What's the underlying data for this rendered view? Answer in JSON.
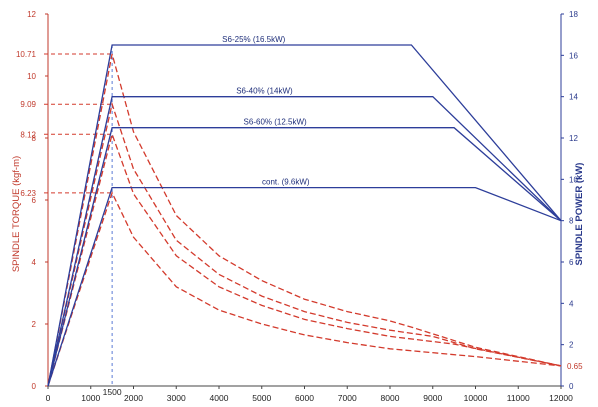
{
  "chart_data": {
    "type": "line",
    "title": "",
    "xlabel": "",
    "xlim": [
      0,
      12000
    ],
    "x_ticks": [
      0,
      1000,
      2000,
      3000,
      4000,
      5000,
      6000,
      7000,
      8000,
      9000,
      10000,
      11000,
      12000
    ],
    "x_ticks_extra": [
      1500
    ],
    "y_left": {
      "label": "SPINDLE TORQUE (kgf-m)",
      "lim": [
        0,
        12
      ],
      "ticks": [
        0,
        2,
        4,
        6,
        8,
        10,
        12
      ],
      "annotated_ticks": [
        {
          "value": 10.71,
          "label": "10.71"
        },
        {
          "value": 9.09,
          "label": "9.09"
        },
        {
          "value": 8.12,
          "label": "8.12"
        },
        {
          "value": 6.23,
          "label": "6.23"
        },
        {
          "value": 0.65,
          "label": "0.65"
        }
      ]
    },
    "y_right": {
      "label": "SPINDLE  POWER (kW)",
      "lim": [
        0,
        18
      ],
      "ticks": [
        0,
        2,
        4,
        6,
        8,
        10,
        12,
        14,
        16,
        18
      ]
    },
    "power_series": [
      {
        "label": "S6-25% (16.5kW)",
        "points": [
          [
            0,
            0
          ],
          [
            1500,
            16.5
          ],
          [
            8500,
            16.5
          ],
          [
            12000,
            8
          ]
        ]
      },
      {
        "label": "S6-40% (14kW)",
        "points": [
          [
            0,
            0
          ],
          [
            1500,
            14
          ],
          [
            9000,
            14
          ],
          [
            12000,
            8
          ]
        ]
      },
      {
        "label": "S6-60% (12.5kW)",
        "points": [
          [
            0,
            0
          ],
          [
            1500,
            12.5
          ],
          [
            9500,
            12.5
          ],
          [
            12000,
            8
          ]
        ]
      },
      {
        "label": "cont. (9.6kW)",
        "points": [
          [
            0,
            0
          ],
          [
            1500,
            9.6
          ],
          [
            10000,
            9.6
          ],
          [
            12000,
            8
          ]
        ]
      }
    ],
    "torque_series": [
      {
        "points": [
          [
            0,
            0
          ],
          [
            1500,
            10.71
          ],
          [
            2000,
            8.2
          ],
          [
            3000,
            5.5
          ],
          [
            4000,
            4.2
          ],
          [
            5000,
            3.4
          ],
          [
            6000,
            2.8
          ],
          [
            7000,
            2.4
          ],
          [
            8000,
            2.1
          ],
          [
            8500,
            1.9
          ],
          [
            10000,
            1.25
          ],
          [
            12000,
            0.65
          ]
        ]
      },
      {
        "points": [
          [
            0,
            0
          ],
          [
            1500,
            9.09
          ],
          [
            2000,
            7.0
          ],
          [
            3000,
            4.7
          ],
          [
            4000,
            3.6
          ],
          [
            5000,
            2.9
          ],
          [
            6000,
            2.4
          ],
          [
            7000,
            2.05
          ],
          [
            8000,
            1.8
          ],
          [
            9000,
            1.6
          ],
          [
            10000,
            1.2
          ],
          [
            12000,
            0.65
          ]
        ]
      },
      {
        "points": [
          [
            0,
            0
          ],
          [
            1500,
            8.12
          ],
          [
            2000,
            6.2
          ],
          [
            3000,
            4.2
          ],
          [
            4000,
            3.2
          ],
          [
            5000,
            2.6
          ],
          [
            6000,
            2.15
          ],
          [
            7000,
            1.85
          ],
          [
            8000,
            1.6
          ],
          [
            9500,
            1.35
          ],
          [
            12000,
            0.65
          ]
        ]
      },
      {
        "points": [
          [
            0,
            0
          ],
          [
            1500,
            6.23
          ],
          [
            2000,
            4.8
          ],
          [
            3000,
            3.2
          ],
          [
            4000,
            2.45
          ],
          [
            5000,
            2.0
          ],
          [
            6000,
            1.65
          ],
          [
            7000,
            1.4
          ],
          [
            8000,
            1.2
          ],
          [
            10000,
            0.95
          ],
          [
            12000,
            0.65
          ]
        ]
      }
    ],
    "grid": false,
    "legend": "none"
  }
}
